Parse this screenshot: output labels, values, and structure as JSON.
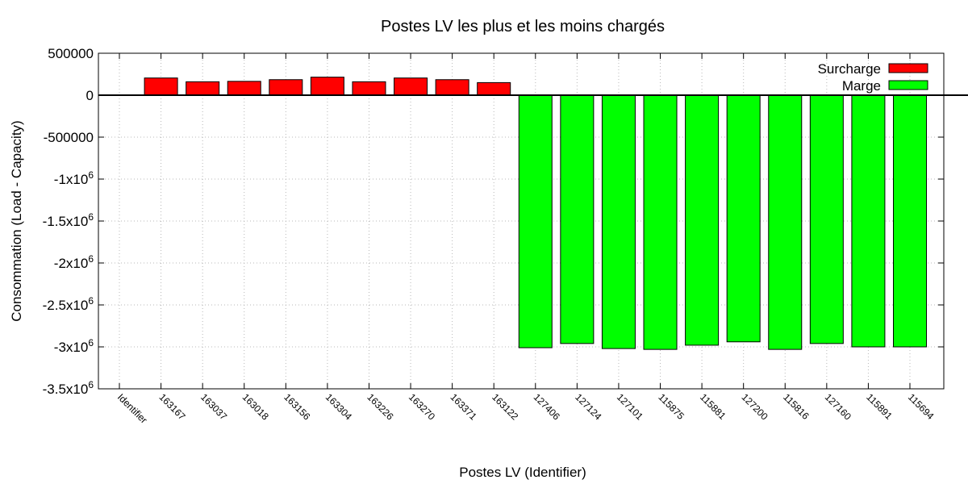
{
  "chart_data": {
    "type": "bar",
    "title": "Postes LV les plus et les moins chargés",
    "xlabel": "Postes LV (Identifier)",
    "ylabel": "Consommation (Load - Capacity)",
    "ylim": [
      -3500000,
      500000
    ],
    "yticks": [
      {
        "value": 500000,
        "base": "500000",
        "sup": ""
      },
      {
        "value": 0,
        "base": "0",
        "sup": ""
      },
      {
        "value": -500000,
        "base": "-500000",
        "sup": ""
      },
      {
        "value": -1000000,
        "base": "-1x10",
        "sup": "6"
      },
      {
        "value": -1500000,
        "base": "-1.5x10",
        "sup": "6"
      },
      {
        "value": -2000000,
        "base": "-2x10",
        "sup": "6"
      },
      {
        "value": -2500000,
        "base": "-2.5x10",
        "sup": "6"
      },
      {
        "value": -3000000,
        "base": "-3x10",
        "sup": "6"
      },
      {
        "value": -3500000,
        "base": "-3.5x10",
        "sup": "6"
      }
    ],
    "grid": true,
    "legend_position": "top-right",
    "categories": [
      "Identifier",
      "163167",
      "163037",
      "163018",
      "163156",
      "163304",
      "163226",
      "163270",
      "163371",
      "163122",
      "127406",
      "127124",
      "127101",
      "115875",
      "115881",
      "127200",
      "115816",
      "127160",
      "115891",
      "115694"
    ],
    "series": [
      {
        "name": "Surcharge",
        "color": "#ff0000",
        "values": [
          null,
          205000,
          160000,
          165000,
          185000,
          215000,
          160000,
          205000,
          185000,
          150000,
          null,
          null,
          null,
          null,
          null,
          null,
          null,
          null,
          null,
          null
        ]
      },
      {
        "name": "Marge",
        "color": "#00ff00",
        "values": [
          null,
          null,
          null,
          null,
          null,
          null,
          null,
          null,
          null,
          null,
          -3010000,
          -2960000,
          -3020000,
          -3030000,
          -2980000,
          -2940000,
          -3030000,
          -2960000,
          -3000000,
          -3000000
        ]
      }
    ]
  }
}
